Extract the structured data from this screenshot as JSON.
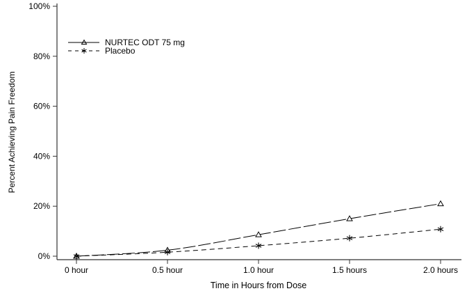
{
  "chart_data": {
    "type": "line",
    "title": "",
    "xlabel": "Time in Hours from Dose",
    "ylabel": "Percent Achieving Pain Freedom",
    "categories": [
      "0 hour",
      "0.5 hour",
      "1.0 hour",
      "1.5 hours",
      "2.0 hours"
    ],
    "x": [
      0,
      0.5,
      1.0,
      1.5,
      2.0
    ],
    "ylim": [
      0,
      100
    ],
    "yticks": [
      0,
      20,
      40,
      60,
      80,
      100
    ],
    "ytick_labels": [
      "0%",
      "20%",
      "40%",
      "60%",
      "80%",
      "100%"
    ],
    "grid": false,
    "legend_position": "upper-left",
    "series": [
      {
        "name": "NURTEC ODT 75 mg",
        "marker": "triangle",
        "line": "long-dash",
        "values": [
          0,
          2.4,
          8.6,
          15.0,
          21.0
        ]
      },
      {
        "name": "Placebo",
        "marker": "asterisk",
        "line": "short-dash",
        "values": [
          0,
          1.6,
          4.2,
          7.2,
          10.8
        ]
      }
    ]
  }
}
